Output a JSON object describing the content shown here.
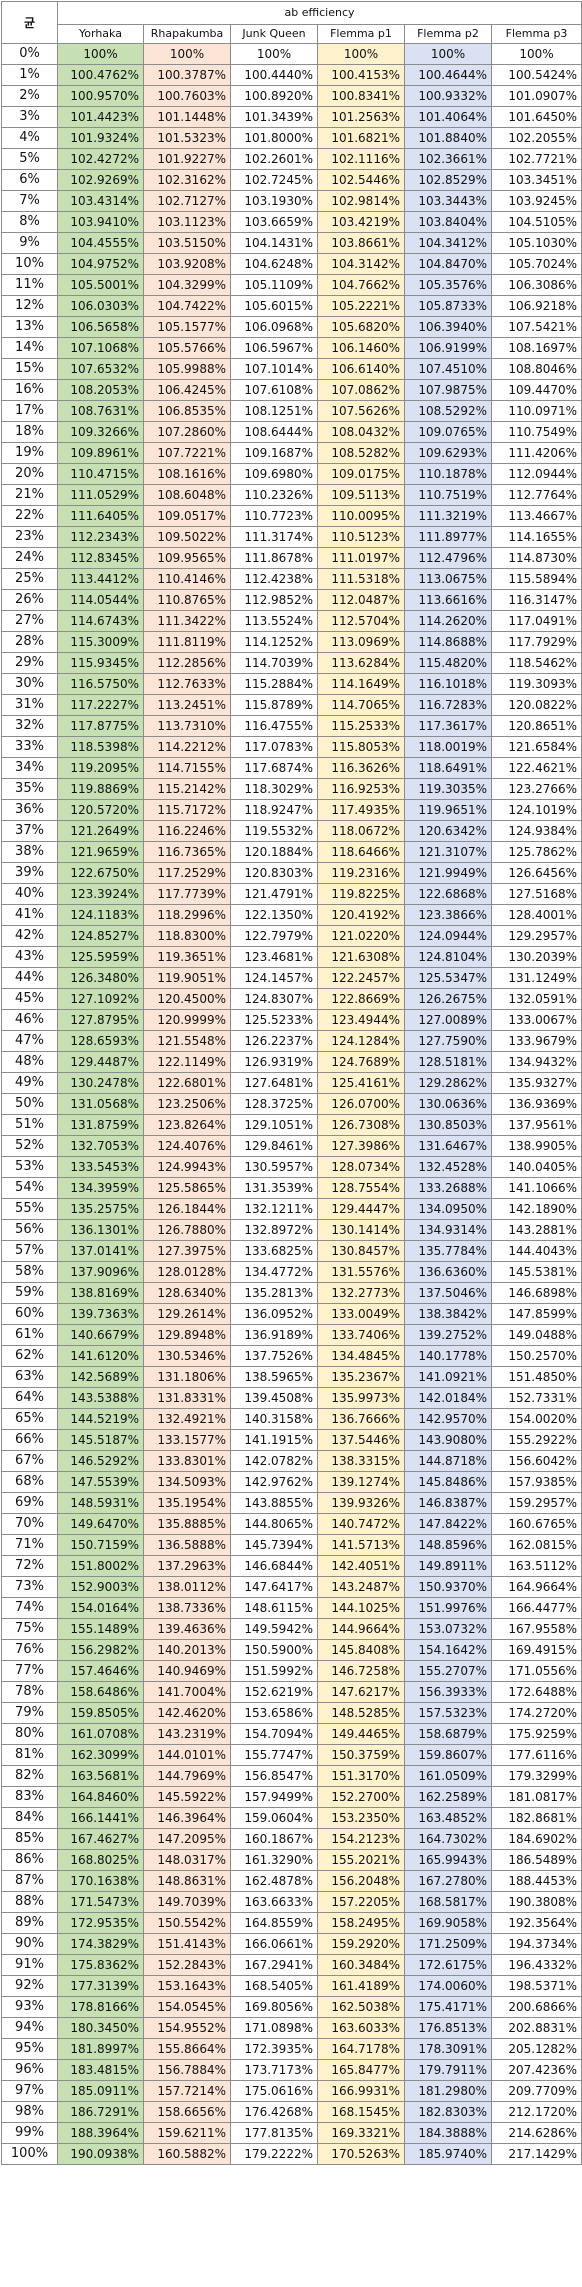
{
  "table": {
    "corner_label": "균",
    "group_header": "ab efficiency",
    "columns": [
      "Yorhaka",
      "Rhapakumba",
      "Junk Queen",
      "Flemma p1",
      "Flemma p2",
      "Flemma p3"
    ],
    "column_colors": [
      "#c6e0b4",
      "#fce4d6",
      "#ffffff",
      "#fff2cc",
      "#d9e1f2",
      "#ffffff"
    ],
    "rows": [
      [
        "0%",
        "100%",
        "100%",
        "100%",
        "100%",
        "100%",
        "100%"
      ],
      [
        "1%",
        "100.4762%",
        "100.3787%",
        "100.4440%",
        "100.4153%",
        "100.4644%",
        "100.5424%"
      ],
      [
        "2%",
        "100.9570%",
        "100.7603%",
        "100.8920%",
        "100.8341%",
        "100.9332%",
        "101.0907%"
      ],
      [
        "3%",
        "101.4423%",
        "101.1448%",
        "101.3439%",
        "101.2563%",
        "101.4064%",
        "101.6450%"
      ],
      [
        "4%",
        "101.9324%",
        "101.5323%",
        "101.8000%",
        "101.6821%",
        "101.8840%",
        "102.2055%"
      ],
      [
        "5%",
        "102.4272%",
        "101.9227%",
        "102.2601%",
        "102.1116%",
        "102.3661%",
        "102.7721%"
      ],
      [
        "6%",
        "102.9269%",
        "102.3162%",
        "102.7245%",
        "102.5446%",
        "102.8529%",
        "103.3451%"
      ],
      [
        "7%",
        "103.4314%",
        "102.7127%",
        "103.1930%",
        "102.9814%",
        "103.3443%",
        "103.9245%"
      ],
      [
        "8%",
        "103.9410%",
        "103.1123%",
        "103.6659%",
        "103.4219%",
        "103.8404%",
        "104.5105%"
      ],
      [
        "9%",
        "104.4555%",
        "103.5150%",
        "104.1431%",
        "103.8661%",
        "104.3412%",
        "105.1030%"
      ],
      [
        "10%",
        "104.9752%",
        "103.9208%",
        "104.6248%",
        "104.3142%",
        "104.8470%",
        "105.7024%"
      ],
      [
        "11%",
        "105.5001%",
        "104.3299%",
        "105.1109%",
        "104.7662%",
        "105.3576%",
        "106.3086%"
      ],
      [
        "12%",
        "106.0303%",
        "104.7422%",
        "105.6015%",
        "105.2221%",
        "105.8733%",
        "106.9218%"
      ],
      [
        "13%",
        "106.5658%",
        "105.1577%",
        "106.0968%",
        "105.6820%",
        "106.3940%",
        "107.5421%"
      ],
      [
        "14%",
        "107.1068%",
        "105.5766%",
        "106.5967%",
        "106.1460%",
        "106.9199%",
        "108.1697%"
      ],
      [
        "15%",
        "107.6532%",
        "105.9988%",
        "107.1014%",
        "106.6140%",
        "107.4510%",
        "108.8046%"
      ],
      [
        "16%",
        "108.2053%",
        "106.4245%",
        "107.6108%",
        "107.0862%",
        "107.9875%",
        "109.4470%"
      ],
      [
        "17%",
        "108.7631%",
        "106.8535%",
        "108.1251%",
        "107.5626%",
        "108.5292%",
        "110.0971%"
      ],
      [
        "18%",
        "109.3266%",
        "107.2860%",
        "108.6444%",
        "108.0432%",
        "109.0765%",
        "110.7549%"
      ],
      [
        "19%",
        "109.8961%",
        "107.7221%",
        "109.1687%",
        "108.5282%",
        "109.6293%",
        "111.4206%"
      ],
      [
        "20%",
        "110.4715%",
        "108.1616%",
        "109.6980%",
        "109.0175%",
        "110.1878%",
        "112.0944%"
      ],
      [
        "21%",
        "111.0529%",
        "108.6048%",
        "110.2326%",
        "109.5113%",
        "110.7519%",
        "112.7764%"
      ],
      [
        "22%",
        "111.6405%",
        "109.0517%",
        "110.7723%",
        "110.0095%",
        "111.3219%",
        "113.4667%"
      ],
      [
        "23%",
        "112.2343%",
        "109.5022%",
        "111.3174%",
        "110.5123%",
        "111.8977%",
        "114.1655%"
      ],
      [
        "24%",
        "112.8345%",
        "109.9565%",
        "111.8678%",
        "111.0197%",
        "112.4796%",
        "114.8730%"
      ],
      [
        "25%",
        "113.4412%",
        "110.4146%",
        "112.4238%",
        "111.5318%",
        "113.0675%",
        "115.5894%"
      ],
      [
        "26%",
        "114.0544%",
        "110.8765%",
        "112.9852%",
        "112.0487%",
        "113.6616%",
        "116.3147%"
      ],
      [
        "27%",
        "114.6743%",
        "111.3422%",
        "113.5524%",
        "112.5704%",
        "114.2620%",
        "117.0491%"
      ],
      [
        "28%",
        "115.3009%",
        "111.8119%",
        "114.1252%",
        "113.0969%",
        "114.8688%",
        "117.7929%"
      ],
      [
        "29%",
        "115.9345%",
        "112.2856%",
        "114.7039%",
        "113.6284%",
        "115.4820%",
        "118.5462%"
      ],
      [
        "30%",
        "116.5750%",
        "112.7633%",
        "115.2884%",
        "114.1649%",
        "116.1018%",
        "119.3093%"
      ],
      [
        "31%",
        "117.2227%",
        "113.2451%",
        "115.8789%",
        "114.7065%",
        "116.7283%",
        "120.0822%"
      ],
      [
        "32%",
        "117.8775%",
        "113.7310%",
        "116.4755%",
        "115.2533%",
        "117.3617%",
        "120.8651%"
      ],
      [
        "33%",
        "118.5398%",
        "114.2212%",
        "117.0783%",
        "115.8053%",
        "118.0019%",
        "121.6584%"
      ],
      [
        "34%",
        "119.2095%",
        "114.7155%",
        "117.6874%",
        "116.3626%",
        "118.6491%",
        "122.4621%"
      ],
      [
        "35%",
        "119.8869%",
        "115.2142%",
        "118.3029%",
        "116.9253%",
        "119.3035%",
        "123.2766%"
      ],
      [
        "36%",
        "120.5720%",
        "115.7172%",
        "118.9247%",
        "117.4935%",
        "119.9651%",
        "124.1019%"
      ],
      [
        "37%",
        "121.2649%",
        "116.2246%",
        "119.5532%",
        "118.0672%",
        "120.6342%",
        "124.9384%"
      ],
      [
        "38%",
        "121.9659%",
        "116.7365%",
        "120.1884%",
        "118.6466%",
        "121.3107%",
        "125.7862%"
      ],
      [
        "39%",
        "122.6750%",
        "117.2529%",
        "120.8303%",
        "119.2316%",
        "121.9949%",
        "126.6456%"
      ],
      [
        "40%",
        "123.3924%",
        "117.7739%",
        "121.4791%",
        "119.8225%",
        "122.6868%",
        "127.5168%"
      ],
      [
        "41%",
        "124.1183%",
        "118.2996%",
        "122.1350%",
        "120.4192%",
        "123.3866%",
        "128.4001%"
      ],
      [
        "42%",
        "124.8527%",
        "118.8300%",
        "122.7979%",
        "121.0220%",
        "124.0944%",
        "129.2957%"
      ],
      [
        "43%",
        "125.5959%",
        "119.3651%",
        "123.4681%",
        "121.6308%",
        "124.8104%",
        "130.2039%"
      ],
      [
        "44%",
        "126.3480%",
        "119.9051%",
        "124.1457%",
        "122.2457%",
        "125.5347%",
        "131.1249%"
      ],
      [
        "45%",
        "127.1092%",
        "120.4500%",
        "124.8307%",
        "122.8669%",
        "126.2675%",
        "132.0591%"
      ],
      [
        "46%",
        "127.8795%",
        "120.9999%",
        "125.5233%",
        "123.4944%",
        "127.0089%",
        "133.0067%"
      ],
      [
        "47%",
        "128.6593%",
        "121.5548%",
        "126.2237%",
        "124.1284%",
        "127.7590%",
        "133.9679%"
      ],
      [
        "48%",
        "129.4487%",
        "122.1149%",
        "126.9319%",
        "124.7689%",
        "128.5181%",
        "134.9432%"
      ],
      [
        "49%",
        "130.2478%",
        "122.6801%",
        "127.6481%",
        "125.4161%",
        "129.2862%",
        "135.9327%"
      ],
      [
        "50%",
        "131.0568%",
        "123.2506%",
        "128.3725%",
        "126.0700%",
        "130.0636%",
        "136.9369%"
      ],
      [
        "51%",
        "131.8759%",
        "123.8264%",
        "129.1051%",
        "126.7308%",
        "130.8503%",
        "137.9561%"
      ],
      [
        "52%",
        "132.7053%",
        "124.4076%",
        "129.8461%",
        "127.3986%",
        "131.6467%",
        "138.9905%"
      ],
      [
        "53%",
        "133.5453%",
        "124.9943%",
        "130.5957%",
        "128.0734%",
        "132.4528%",
        "140.0405%"
      ],
      [
        "54%",
        "134.3959%",
        "125.5865%",
        "131.3539%",
        "128.7554%",
        "133.2688%",
        "141.1066%"
      ],
      [
        "55%",
        "135.2575%",
        "126.1844%",
        "132.1211%",
        "129.4447%",
        "134.0950%",
        "142.1890%"
      ],
      [
        "56%",
        "136.1301%",
        "126.7880%",
        "132.8972%",
        "130.1414%",
        "134.9314%",
        "143.2881%"
      ],
      [
        "57%",
        "137.0141%",
        "127.3975%",
        "133.6825%",
        "130.8457%",
        "135.7784%",
        "144.4043%"
      ],
      [
        "58%",
        "137.9096%",
        "128.0128%",
        "134.4772%",
        "131.5576%",
        "136.6360%",
        "145.5381%"
      ],
      [
        "59%",
        "138.8169%",
        "128.6340%",
        "135.2813%",
        "132.2773%",
        "137.5046%",
        "146.6898%"
      ],
      [
        "60%",
        "139.7363%",
        "129.2614%",
        "136.0952%",
        "133.0049%",
        "138.3842%",
        "147.8599%"
      ],
      [
        "61%",
        "140.6679%",
        "129.8948%",
        "136.9189%",
        "133.7406%",
        "139.2752%",
        "149.0488%"
      ],
      [
        "62%",
        "141.6120%",
        "130.5346%",
        "137.7526%",
        "134.4845%",
        "140.1778%",
        "150.2570%"
      ],
      [
        "63%",
        "142.5689%",
        "131.1806%",
        "138.5965%",
        "135.2367%",
        "141.0921%",
        "151.4850%"
      ],
      [
        "64%",
        "143.5388%",
        "131.8331%",
        "139.4508%",
        "135.9973%",
        "142.0184%",
        "152.7331%"
      ],
      [
        "65%",
        "144.5219%",
        "132.4921%",
        "140.3158%",
        "136.7666%",
        "142.9570%",
        "154.0020%"
      ],
      [
        "66%",
        "145.5187%",
        "133.1577%",
        "141.1915%",
        "137.5446%",
        "143.9080%",
        "155.2922%"
      ],
      [
        "67%",
        "146.5292%",
        "133.8301%",
        "142.0782%",
        "138.3315%",
        "144.8718%",
        "156.6042%"
      ],
      [
        "68%",
        "147.5539%",
        "134.5093%",
        "142.9762%",
        "139.1274%",
        "145.8486%",
        "157.9385%"
      ],
      [
        "69%",
        "148.5931%",
        "135.1954%",
        "143.8855%",
        "139.9326%",
        "146.8387%",
        "159.2957%"
      ],
      [
        "70%",
        "149.6470%",
        "135.8885%",
        "144.8065%",
        "140.7472%",
        "147.8422%",
        "160.6765%"
      ],
      [
        "71%",
        "150.7159%",
        "136.5888%",
        "145.7394%",
        "141.5713%",
        "148.8596%",
        "162.0815%"
      ],
      [
        "72%",
        "151.8002%",
        "137.2963%",
        "146.6844%",
        "142.4051%",
        "149.8911%",
        "163.5112%"
      ],
      [
        "73%",
        "152.9003%",
        "138.0112%",
        "147.6417%",
        "143.2487%",
        "150.9370%",
        "164.9664%"
      ],
      [
        "74%",
        "154.0164%",
        "138.7336%",
        "148.6115%",
        "144.1025%",
        "151.9976%",
        "166.4477%"
      ],
      [
        "75%",
        "155.1489%",
        "139.4636%",
        "149.5942%",
        "144.9664%",
        "153.0732%",
        "167.9558%"
      ],
      [
        "76%",
        "156.2982%",
        "140.2013%",
        "150.5900%",
        "145.8408%",
        "154.1642%",
        "169.4915%"
      ],
      [
        "77%",
        "157.4646%",
        "140.9469%",
        "151.5992%",
        "146.7258%",
        "155.2707%",
        "171.0556%"
      ],
      [
        "78%",
        "158.6486%",
        "141.7004%",
        "152.6219%",
        "147.6217%",
        "156.3933%",
        "172.6488%"
      ],
      [
        "79%",
        "159.8505%",
        "142.4620%",
        "153.6586%",
        "148.5285%",
        "157.5323%",
        "174.2720%"
      ],
      [
        "80%",
        "161.0708%",
        "143.2319%",
        "154.7094%",
        "149.4465%",
        "158.6879%",
        "175.9259%"
      ],
      [
        "81%",
        "162.3099%",
        "144.0101%",
        "155.7747%",
        "150.3759%",
        "159.8607%",
        "177.6116%"
      ],
      [
        "82%",
        "163.5681%",
        "144.7969%",
        "156.8547%",
        "151.3170%",
        "161.0509%",
        "179.3299%"
      ],
      [
        "83%",
        "164.8460%",
        "145.5922%",
        "157.9499%",
        "152.2700%",
        "162.2589%",
        "181.0817%"
      ],
      [
        "84%",
        "166.1441%",
        "146.3964%",
        "159.0604%",
        "153.2350%",
        "163.4852%",
        "182.8681%"
      ],
      [
        "85%",
        "167.4627%",
        "147.2095%",
        "160.1867%",
        "154.2123%",
        "164.7302%",
        "184.6902%"
      ],
      [
        "86%",
        "168.8025%",
        "148.0317%",
        "161.3290%",
        "155.2021%",
        "165.9943%",
        "186.5489%"
      ],
      [
        "87%",
        "170.1638%",
        "148.8631%",
        "162.4878%",
        "156.2048%",
        "167.2780%",
        "188.4453%"
      ],
      [
        "88%",
        "171.5473%",
        "149.7039%",
        "163.6633%",
        "157.2205%",
        "168.5817%",
        "190.3808%"
      ],
      [
        "89%",
        "172.9535%",
        "150.5542%",
        "164.8559%",
        "158.2495%",
        "169.9058%",
        "192.3564%"
      ],
      [
        "90%",
        "174.3829%",
        "151.4143%",
        "166.0661%",
        "159.2920%",
        "171.2509%",
        "194.3734%"
      ],
      [
        "91%",
        "175.8362%",
        "152.2843%",
        "167.2941%",
        "160.3484%",
        "172.6175%",
        "196.4332%"
      ],
      [
        "92%",
        "177.3139%",
        "153.1643%",
        "168.5405%",
        "161.4189%",
        "174.0060%",
        "198.5371%"
      ],
      [
        "93%",
        "178.8166%",
        "154.0545%",
        "169.8056%",
        "162.5038%",
        "175.4171%",
        "200.6866%"
      ],
      [
        "94%",
        "180.3450%",
        "154.9552%",
        "171.0898%",
        "163.6033%",
        "176.8513%",
        "202.8831%"
      ],
      [
        "95%",
        "181.8997%",
        "155.8664%",
        "172.3935%",
        "164.7178%",
        "178.3091%",
        "205.1282%"
      ],
      [
        "96%",
        "183.4815%",
        "156.7884%",
        "173.7173%",
        "165.8477%",
        "179.7911%",
        "207.4236%"
      ],
      [
        "97%",
        "185.0911%",
        "157.7214%",
        "175.0616%",
        "166.9931%",
        "181.2980%",
        "209.7709%"
      ],
      [
        "98%",
        "186.7291%",
        "158.6656%",
        "176.4268%",
        "168.1545%",
        "182.8303%",
        "212.1720%"
      ],
      [
        "99%",
        "188.3964%",
        "159.6211%",
        "177.8135%",
        "169.3321%",
        "184.3888%",
        "214.6286%"
      ],
      [
        "100%",
        "190.0938%",
        "160.5882%",
        "179.2222%",
        "170.5263%",
        "185.9740%",
        "217.1429%"
      ]
    ]
  }
}
